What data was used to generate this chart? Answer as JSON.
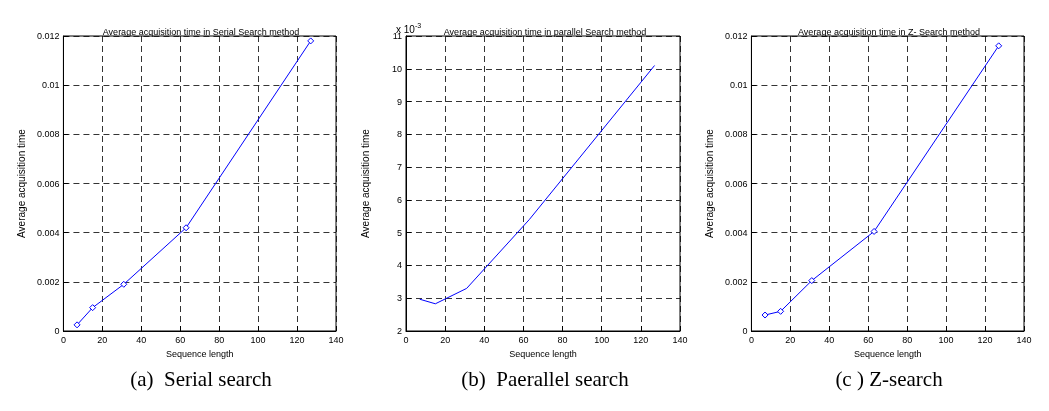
{
  "chart_data": [
    {
      "type": "line",
      "title": "Average acquisition time in Serial Search method",
      "subtitle": "(a)  Serial search",
      "xlabel": "Sequence length",
      "ylabel": "Average acquisition time",
      "x": [
        7,
        15,
        31,
        63,
        127
      ],
      "series": [
        {
          "color": "#0000ff",
          "values": [
            0.00025,
            0.00095,
            0.0019,
            0.0042,
            0.0118
          ]
        }
      ],
      "xlim": [
        0,
        140
      ],
      "xticks": [
        0,
        20,
        40,
        60,
        80,
        100,
        120,
        140
      ],
      "ylim": [
        0,
        0.012
      ],
      "yticks": [
        0,
        0.002,
        0.004,
        0.006,
        0.008,
        0.01,
        0.012
      ],
      "grid": true,
      "marker": "diamond",
      "line_style": "solid"
    },
    {
      "type": "line",
      "title": "Average acquisition time in parallel Search method",
      "subtitle": "(b)  Paerallel search",
      "xlabel": "Sequence length",
      "ylabel": "Average acquisition time",
      "annotations": [
        "x 10$^{-3}$"
      ],
      "x": [
        7,
        15,
        31,
        63,
        127
      ],
      "series": [
        {
          "color": "#0000ff",
          "values": [
            2.97,
            2.83,
            3.3,
            5.4,
            10.1
          ]
        }
      ],
      "xlim": [
        0,
        140
      ],
      "xticks": [
        0,
        20,
        40,
        60,
        80,
        100,
        120,
        140
      ],
      "ylim": [
        2,
        11
      ],
      "yticks": [
        2,
        3,
        4,
        5,
        6,
        7,
        8,
        9,
        10,
        11
      ],
      "grid": true,
      "marker": "none",
      "line_style": "solid"
    },
    {
      "type": "line",
      "title": "Average acquisition time in Z- Search method",
      "subtitle": "(c ) Z-search",
      "xlabel": "Sequence length",
      "ylabel": "Average acquisition time",
      "x": [
        7,
        15,
        31,
        63,
        127
      ],
      "series": [
        {
          "color": "#0000ff",
          "values": [
            0.00065,
            0.0008,
            0.00205,
            0.00405,
            0.0116
          ]
        }
      ],
      "xlim": [
        0,
        140
      ],
      "xticks": [
        0,
        20,
        40,
        60,
        80,
        100,
        120,
        140
      ],
      "ylim": [
        0,
        0.012
      ],
      "yticks": [
        0,
        0.002,
        0.004,
        0.006,
        0.008,
        0.01,
        0.012
      ],
      "grid": true,
      "marker": "diamond",
      "line_style": "solid"
    }
  ]
}
